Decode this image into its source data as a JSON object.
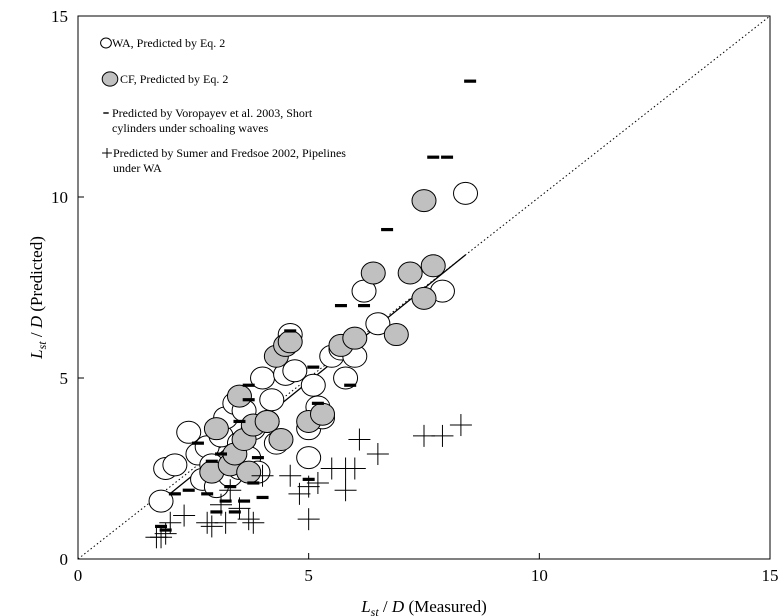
{
  "chart_data": {
    "type": "scatter",
    "xlabel": {
      "main": "L",
      "sub": "st",
      "rest": " / D (Measured)"
    },
    "ylabel": {
      "main": "L",
      "sub": "st",
      "rest": " / D (Predicted)"
    },
    "xlim": [
      0,
      15
    ],
    "ylim": [
      0,
      15
    ],
    "xticks": [
      "0",
      "5",
      "10",
      "15"
    ],
    "yticks": [
      "0",
      "5",
      "10",
      "15"
    ],
    "grid": false,
    "legend_position": "top-left",
    "colors": {
      "cf_fill": "#c0c0c0",
      "stroke": "#000000",
      "wa_fill": "#ffffff"
    },
    "legend": [
      {
        "marker": "open-circle",
        "lines": [
          "WA, Predicted by Eq. 2"
        ]
      },
      {
        "marker": "gray-circle",
        "lines": [
          "CF, Predicted by Eq. 2"
        ]
      },
      {
        "marker": "dash",
        "lines": [
          "Predicted by Voropayev et al. 2003, Short",
          "cylinders under schoaling waves"
        ]
      },
      {
        "marker": "plus",
        "lines": [
          "Predicted by Sumer and Fredsoe 2002, Pipelines",
          "under WA"
        ]
      }
    ],
    "reference_line": {
      "type": "dotted",
      "from": [
        0,
        0
      ],
      "to": [
        15,
        15
      ]
    },
    "fit_line": {
      "type": "solid",
      "from": [
        1.7,
        1.5
      ],
      "to": [
        8.4,
        8.4
      ]
    },
    "series": [
      {
        "name": "WA, Predicted by Eq. 2",
        "marker": "open-circle",
        "points": [
          [
            1.8,
            1.6
          ],
          [
            1.9,
            2.5
          ],
          [
            2.1,
            2.6
          ],
          [
            2.4,
            3.5
          ],
          [
            2.6,
            2.9
          ],
          [
            2.7,
            2.2
          ],
          [
            2.8,
            3.1
          ],
          [
            2.9,
            2.6
          ],
          [
            3.0,
            2.0
          ],
          [
            3.1,
            3.4
          ],
          [
            3.2,
            3.9
          ],
          [
            3.3,
            2.3
          ],
          [
            3.4,
            4.3
          ],
          [
            3.5,
            3.2
          ],
          [
            3.5,
            2.5
          ],
          [
            3.6,
            4.1
          ],
          [
            3.7,
            2.8
          ],
          [
            3.8,
            3.6
          ],
          [
            3.9,
            2.4
          ],
          [
            4.0,
            5.0
          ],
          [
            4.1,
            3.8
          ],
          [
            4.2,
            4.4
          ],
          [
            4.3,
            3.2
          ],
          [
            4.5,
            5.1
          ],
          [
            4.6,
            6.2
          ],
          [
            4.7,
            5.2
          ],
          [
            5.0,
            3.6
          ],
          [
            5.0,
            2.8
          ],
          [
            5.1,
            4.8
          ],
          [
            5.2,
            4.2
          ],
          [
            5.3,
            3.9
          ],
          [
            5.5,
            5.6
          ],
          [
            5.7,
            5.8
          ],
          [
            5.8,
            5.0
          ],
          [
            6.0,
            5.6
          ],
          [
            6.2,
            7.4
          ],
          [
            6.5,
            6.5
          ],
          [
            7.9,
            7.4
          ],
          [
            8.4,
            10.1
          ]
        ]
      },
      {
        "name": "CF, Predicted by Eq. 2",
        "marker": "gray-circle",
        "points": [
          [
            2.9,
            2.4
          ],
          [
            3.0,
            3.6
          ],
          [
            3.3,
            2.6
          ],
          [
            3.4,
            2.9
          ],
          [
            3.5,
            4.5
          ],
          [
            3.6,
            3.3
          ],
          [
            3.7,
            2.4
          ],
          [
            3.8,
            3.7
          ],
          [
            4.1,
            3.8
          ],
          [
            4.3,
            5.6
          ],
          [
            4.4,
            3.3
          ],
          [
            4.5,
            5.9
          ],
          [
            4.6,
            6.0
          ],
          [
            5.0,
            3.8
          ],
          [
            5.3,
            4.0
          ],
          [
            5.7,
            5.9
          ],
          [
            6.0,
            6.1
          ],
          [
            6.4,
            7.9
          ],
          [
            6.9,
            6.2
          ],
          [
            7.2,
            7.9
          ],
          [
            7.5,
            7.2
          ],
          [
            7.5,
            9.9
          ],
          [
            7.7,
            8.1
          ]
        ]
      },
      {
        "name": "Predicted by Voropayev et al. 2003, Short cylinders under schoaling waves",
        "marker": "dash",
        "points": [
          [
            1.8,
            0.9
          ],
          [
            1.9,
            0.8
          ],
          [
            2.1,
            1.8
          ],
          [
            2.4,
            1.9
          ],
          [
            2.6,
            3.2
          ],
          [
            2.8,
            1.8
          ],
          [
            2.9,
            2.7
          ],
          [
            3.0,
            1.3
          ],
          [
            3.1,
            2.9
          ],
          [
            3.2,
            1.6
          ],
          [
            3.3,
            2.0
          ],
          [
            3.4,
            1.3
          ],
          [
            3.5,
            3.8
          ],
          [
            3.6,
            1.6
          ],
          [
            3.7,
            4.8
          ],
          [
            3.7,
            4.4
          ],
          [
            3.8,
            2.1
          ],
          [
            3.9,
            2.8
          ],
          [
            4.0,
            1.7
          ],
          [
            4.6,
            6.3
          ],
          [
            5.0,
            2.2
          ],
          [
            5.1,
            5.3
          ],
          [
            5.2,
            4.3
          ],
          [
            5.7,
            7.0
          ],
          [
            5.9,
            4.8
          ],
          [
            6.2,
            7.0
          ],
          [
            6.7,
            9.1
          ],
          [
            7.7,
            11.1
          ],
          [
            8.0,
            11.1
          ],
          [
            8.5,
            13.2
          ]
        ]
      },
      {
        "name": "Predicted by Sumer and Fredsoe 2002, Pipelines under WA",
        "marker": "plus",
        "points": [
          [
            1.7,
            0.6
          ],
          [
            1.8,
            0.6
          ],
          [
            1.9,
            0.7
          ],
          [
            2.0,
            1.0
          ],
          [
            2.3,
            1.2
          ],
          [
            2.8,
            1.0
          ],
          [
            2.9,
            0.9
          ],
          [
            3.1,
            1.5
          ],
          [
            3.2,
            1.0
          ],
          [
            3.3,
            1.9
          ],
          [
            3.5,
            1.4
          ],
          [
            3.7,
            1.1
          ],
          [
            3.8,
            1.0
          ],
          [
            4.0,
            2.3
          ],
          [
            4.6,
            2.3
          ],
          [
            4.8,
            1.8
          ],
          [
            5.0,
            1.1
          ],
          [
            5.0,
            2.0
          ],
          [
            5.2,
            2.1
          ],
          [
            5.5,
            2.5
          ],
          [
            5.8,
            1.9
          ],
          [
            5.8,
            2.5
          ],
          [
            6.0,
            2.5
          ],
          [
            6.1,
            3.3
          ],
          [
            6.5,
            2.9
          ],
          [
            7.5,
            3.4
          ],
          [
            7.9,
            3.4
          ],
          [
            8.3,
            3.7
          ]
        ]
      }
    ]
  }
}
